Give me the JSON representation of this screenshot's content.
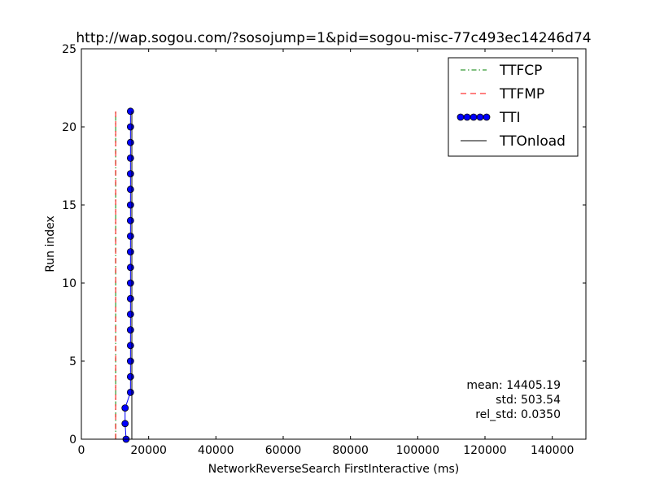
{
  "chart_data": {
    "type": "line",
    "title": "http://wap.sogou.com/?sosojump=1&pid=sogou-misc-77c493ec14246d74",
    "xlabel": "NetworkReverseSearch FirstInteractive (ms)",
    "ylabel": "Run index",
    "xlim": [
      0,
      150000
    ],
    "ylim": [
      0,
      25
    ],
    "x_ticks": [
      0,
      20000,
      40000,
      60000,
      80000,
      100000,
      120000,
      140000
    ],
    "x_tick_labels": [
      "0",
      "20000",
      "40000",
      "60000",
      "80000",
      "100000",
      "120000",
      "140000"
    ],
    "y_ticks": [
      0,
      5,
      10,
      15,
      20,
      25
    ],
    "y_tick_labels": [
      "0",
      "5",
      "10",
      "15",
      "20",
      "25"
    ],
    "grid": false,
    "legend_position": "top-right",
    "series": [
      {
        "name": "TTFCP",
        "color": "#008000",
        "style": "dashdot",
        "x": [
          10200,
          10200,
          10200,
          10200,
          10200,
          10200,
          10200,
          10200,
          10200,
          10200,
          10200,
          10200,
          10200,
          10200,
          10200,
          10200,
          10200,
          10200,
          10200,
          10200,
          10200,
          10200
        ],
        "y": [
          0,
          1,
          2,
          3,
          4,
          5,
          6,
          7,
          8,
          9,
          10,
          11,
          12,
          13,
          14,
          15,
          16,
          17,
          18,
          19,
          20,
          21
        ]
      },
      {
        "name": "TTFMP",
        "color": "#ff0000",
        "style": "dashed",
        "x": [
          10200,
          10200,
          10200,
          10200,
          10200,
          10200,
          10200,
          10200,
          10200,
          10200,
          10200,
          10200,
          10200,
          10200,
          10200,
          10200,
          10200,
          10200,
          10200,
          10200,
          10200,
          10200
        ],
        "y": [
          0,
          1,
          2,
          3,
          4,
          5,
          6,
          7,
          8,
          9,
          10,
          11,
          12,
          13,
          14,
          15,
          16,
          17,
          18,
          19,
          20,
          21
        ]
      },
      {
        "name": "TTI",
        "color": "#0000ff",
        "style": "solid-markers",
        "x": [
          13300,
          13000,
          13000,
          14600,
          14600,
          14600,
          14600,
          14600,
          14600,
          14600,
          14600,
          14600,
          14600,
          14600,
          14600,
          14600,
          14600,
          14600,
          14600,
          14600,
          14600,
          14600
        ],
        "y": [
          0,
          1,
          2,
          3,
          4,
          5,
          6,
          7,
          8,
          9,
          10,
          11,
          12,
          13,
          14,
          15,
          16,
          17,
          18,
          19,
          20,
          21
        ]
      },
      {
        "name": "TTOnload",
        "color": "#000000",
        "style": "solid",
        "x": [
          15000,
          15000,
          15000,
          15000,
          15000,
          15000,
          15000,
          15000,
          15000,
          15000,
          15000,
          15000,
          15000,
          15000,
          15000,
          15000,
          15000,
          15000,
          15000,
          15000,
          15000,
          15000
        ],
        "y": [
          0,
          1,
          2,
          3,
          4,
          5,
          6,
          7,
          8,
          9,
          10,
          11,
          12,
          13,
          14,
          15,
          16,
          17,
          18,
          19,
          20,
          21
        ]
      }
    ],
    "annotations": [
      "mean: 14405.19",
      "std: 503.54",
      "rel_std: 0.0350"
    ]
  }
}
